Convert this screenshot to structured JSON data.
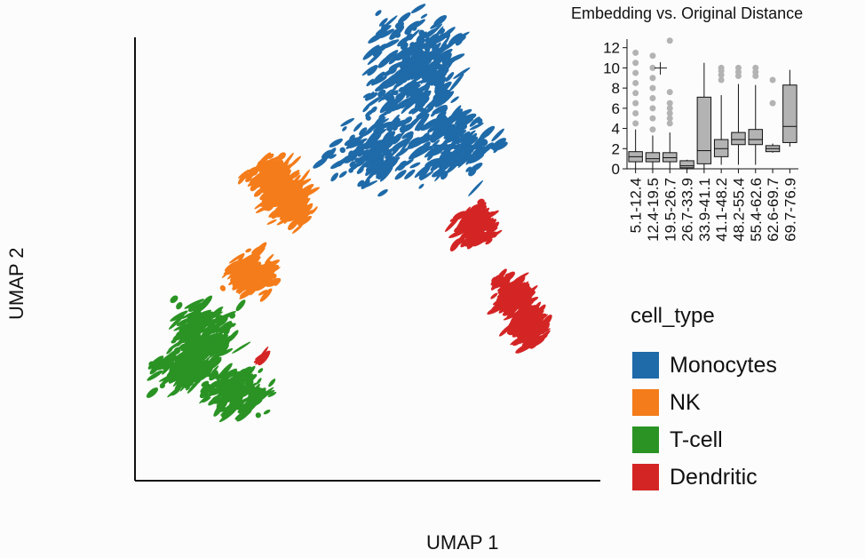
{
  "chart_data": [
    {
      "type": "scatter",
      "xlabel": "UMAP 1",
      "ylabel": "UMAP 2",
      "legend_title": "cell_type",
      "legend_position": "right",
      "series": [
        {
          "name": "Monocytes",
          "color": "#1f6aa8",
          "centers": [
            [
              6.2,
              8.8
            ],
            [
              5.4,
              7.4
            ],
            [
              7.2,
              7.6
            ],
            [
              6.4,
              9.7
            ]
          ],
          "spread": [
            0.9,
            0.7
          ]
        },
        {
          "name": "NK",
          "color": "#f47c1a",
          "centers": [
            [
              3.1,
              6.8
            ],
            [
              2.6,
              4.7
            ],
            [
              3.5,
              6.3
            ]
          ],
          "spread": [
            0.45,
            0.45
          ]
        },
        {
          "name": "T-cell",
          "color": "#2a9324",
          "centers": [
            [
              1.6,
              3.4
            ],
            [
              2.3,
              2.0
            ],
            [
              1.2,
              2.6
            ]
          ],
          "spread": [
            0.6,
            0.55
          ]
        },
        {
          "name": "Dendritic",
          "color": "#d42525",
          "centers": [
            [
              7.7,
              5.8
            ],
            [
              8.5,
              4.2
            ],
            [
              8.9,
              3.5
            ],
            [
              2.9,
              2.8
            ]
          ],
          "spread": [
            0.35,
            0.4
          ]
        }
      ],
      "xlim": [
        0,
        10.5
      ],
      "ylim": [
        0,
        10
      ]
    },
    {
      "type": "box",
      "title": "Embedding vs. Original Distance",
      "categories": [
        "5.1-12.4",
        "12.4-19.5",
        "19.5-26.7",
        "26.7-33.9",
        "33.9-41.1",
        "41.1-48.2",
        "48.2-55.4",
        "55.4-62.6",
        "62.6-69.7",
        "69.7-76.9"
      ],
      "yticks": [
        0,
        2,
        4,
        6,
        8,
        10,
        12
      ],
      "ylim": [
        0,
        12.5
      ],
      "boxes": [
        {
          "q1": 0.7,
          "med": 1.2,
          "q3": 1.7,
          "lo": 0,
          "hi": 3.9,
          "outliers": [
            4.5,
            5.5,
            6.5,
            7.5,
            8.5,
            9.5,
            10.5,
            11.5
          ]
        },
        {
          "q1": 0.7,
          "med": 1.0,
          "q3": 1.6,
          "lo": 0,
          "hi": 3.3,
          "outliers": [
            3.9,
            5,
            6,
            7,
            8,
            9,
            10,
            11.2
          ]
        },
        {
          "q1": 0.7,
          "med": 1.1,
          "q3": 1.6,
          "lo": 0,
          "hi": 3.6,
          "outliers": [
            4.5,
            5,
            5.5,
            6,
            6.5,
            7.6,
            12.7
          ]
        },
        {
          "q1": 0.1,
          "med": 0.3,
          "q3": 0.8,
          "lo": 0,
          "hi": 0.9,
          "outliers": []
        },
        {
          "q1": 0.5,
          "med": 1.8,
          "q3": 7.1,
          "lo": 0,
          "hi": 10.5,
          "outliers": []
        },
        {
          "q1": 1.2,
          "med": 2.0,
          "q3": 2.9,
          "lo": 0.4,
          "hi": 7.3,
          "outliers": [
            8.8,
            9.3,
            9.7,
            10.0
          ]
        },
        {
          "q1": 2.4,
          "med": 2.9,
          "q3": 3.6,
          "lo": 0.4,
          "hi": 8.4,
          "outliers": [
            9.2,
            9.6,
            10.0
          ]
        },
        {
          "q1": 2.4,
          "med": 2.9,
          "q3": 3.9,
          "lo": 0.4,
          "hi": 8.3,
          "outliers": [
            9.2,
            9.6,
            10.0
          ]
        },
        {
          "q1": 1.7,
          "med": 2.0,
          "q3": 2.3,
          "lo": 1.6,
          "hi": 2.5,
          "outliers": [
            6.5,
            8.8
          ]
        },
        {
          "q1": 2.6,
          "med": 4.2,
          "q3": 8.3,
          "lo": 2.2,
          "hi": 9.8,
          "outliers": []
        }
      ]
    }
  ]
}
